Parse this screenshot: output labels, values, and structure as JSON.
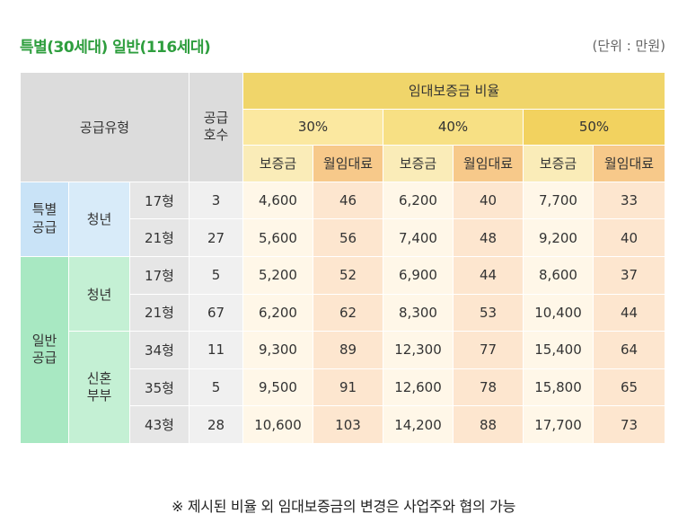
{
  "title": "특별(30세대) 일반(116세대)",
  "unit": "(단위 : 만원)",
  "header": {
    "supply_type": "공급유형",
    "supply_units": "공급\n호수",
    "ratio_title": "임대보증금 비율",
    "rates": [
      "30%",
      "40%",
      "50%"
    ],
    "deposit": "보증금",
    "monthly": "월임대료"
  },
  "groups": {
    "special": "특별\n공급",
    "general": "일반\n공급",
    "youth": "청년",
    "newlywed": "신혼\n부부"
  },
  "rows": [
    {
      "size": "17형",
      "units": "3",
      "d30": "4,600",
      "m30": "46",
      "d40": "6,200",
      "m40": "40",
      "d50": "7,700",
      "m50": "33"
    },
    {
      "size": "21형",
      "units": "27",
      "d30": "5,600",
      "m30": "56",
      "d40": "7,400",
      "m40": "48",
      "d50": "9,200",
      "m50": "40"
    },
    {
      "size": "17형",
      "units": "5",
      "d30": "5,200",
      "m30": "52",
      "d40": "6,900",
      "m40": "44",
      "d50": "8,600",
      "m50": "37"
    },
    {
      "size": "21형",
      "units": "67",
      "d30": "6,200",
      "m30": "62",
      "d40": "8,300",
      "m40": "53",
      "d50": "10,400",
      "m50": "44"
    },
    {
      "size": "34형",
      "units": "11",
      "d30": "9,300",
      "m30": "89",
      "d40": "12,300",
      "m40": "77",
      "d50": "15,400",
      "m50": "64"
    },
    {
      "size": "35형",
      "units": "5",
      "d30": "9,500",
      "m30": "91",
      "d40": "12,600",
      "m40": "78",
      "d50": "15,800",
      "m50": "65"
    },
    {
      "size": "43형",
      "units": "28",
      "d30": "10,600",
      "m30": "103",
      "d40": "14,200",
      "m40": "88",
      "d50": "17,700",
      "m50": "73"
    }
  ],
  "footnote": "※ 제시된 비율 외 임대보증금의 변경은 사업주와 협의 가능"
}
